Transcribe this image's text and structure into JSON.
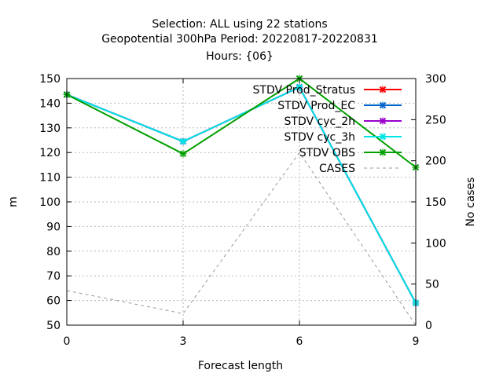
{
  "chart_data": {
    "type": "line",
    "title_lines": [
      "Selection: ALL using    22 stations",
      "Geopotential 300hPa   Period: 20220817-20220831",
      "Hours: {06}"
    ],
    "xlabel": "Forecast length",
    "ylabel": "m",
    "y2label": "No cases",
    "x": [
      0,
      3,
      6,
      9
    ],
    "xlim": [
      0,
      9
    ],
    "ylim": [
      50,
      150
    ],
    "y2lim": [
      0,
      300
    ],
    "xticks": [
      0,
      3,
      6,
      9
    ],
    "yticks": [
      50,
      60,
      70,
      80,
      90,
      100,
      110,
      120,
      130,
      140,
      150
    ],
    "y2ticks": [
      0,
      50,
      100,
      150,
      200,
      250,
      300
    ],
    "grid": true,
    "legend_position": "top-right",
    "series": [
      {
        "name": "STDV Prod_Stratus",
        "axis": "y",
        "color": "#ff0000",
        "dash": false,
        "values": [
          143.5,
          124.5,
          146.5,
          59
        ]
      },
      {
        "name": "STDV Prod_EC",
        "axis": "y",
        "color": "#0066cc",
        "dash": false,
        "values": [
          143.5,
          124.5,
          146.5,
          59
        ]
      },
      {
        "name": "STDV cyc_2h",
        "axis": "y",
        "color": "#9900cc",
        "dash": false,
        "values": [
          143.5,
          124.5,
          146.5,
          59
        ]
      },
      {
        "name": "STDV cyc_3h",
        "axis": "y",
        "color": "#00e5e5",
        "dash": false,
        "values": [
          143.5,
          124.5,
          146.5,
          59
        ]
      },
      {
        "name": "STDV OBS",
        "axis": "y",
        "color": "#00a000",
        "dash": false,
        "values": [
          143.5,
          119.5,
          150,
          114
        ]
      },
      {
        "name": "CASES",
        "axis": "y2",
        "color": "#999999",
        "dash": true,
        "values": [
          42,
          14,
          210,
          0
        ]
      }
    ]
  }
}
